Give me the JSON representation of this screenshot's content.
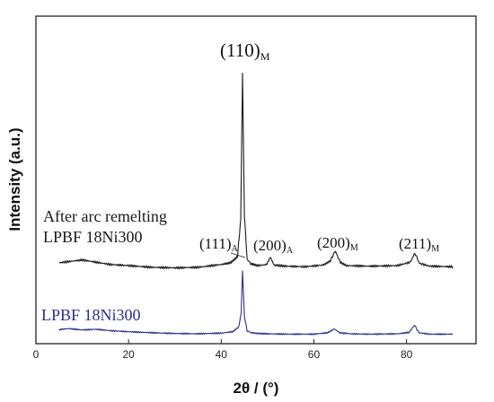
{
  "chart_data": {
    "type": "line",
    "xlabel": "2θ / (°)",
    "ylabel": "Intensity (a.u.)",
    "xlim": [
      0,
      95
    ],
    "xticks": [
      "0",
      "20",
      "40",
      "60",
      "80"
    ],
    "y_ticks_shown": false,
    "grid": false,
    "series": [
      {
        "name": "After arc remelting LPBF 18Ni300",
        "label_lines": [
          "After arc remelting",
          "LPBF 18Ni300"
        ],
        "color": "#1a1a1a",
        "x": [
          5,
          8,
          10,
          13,
          16,
          20,
          25,
          30,
          35,
          40,
          42,
          43.5,
          44.2,
          44.6,
          45.0,
          45.6,
          46.5,
          48,
          49.8,
          50.6,
          51.4,
          54,
          58,
          62,
          63.5,
          64.6,
          65.7,
          67,
          72,
          78,
          80.8,
          81.8,
          82.8,
          85,
          90
        ],
        "values": [
          0.5,
          0.8,
          1.0,
          0.6,
          0.2,
          0.0,
          -0.3,
          -0.4,
          -0.3,
          0.2,
          0.5,
          1.6,
          8.0,
          34.0,
          9.0,
          1.0,
          0.3,
          0.0,
          0.2,
          1.5,
          0.1,
          -0.1,
          -0.2,
          0.1,
          0.8,
          2.6,
          0.6,
          0.0,
          -0.1,
          0.0,
          0.6,
          2.2,
          0.4,
          -0.1,
          -0.2
        ]
      },
      {
        "name": "LPBF 18Ni300",
        "label_lines": [
          "LPBF 18Ni300"
        ],
        "color": "#2b2f8c",
        "x": [
          5,
          7,
          10,
          13,
          16,
          20,
          25,
          30,
          35,
          40,
          42.5,
          43.8,
          44.3,
          44.6,
          45.0,
          45.6,
          46.5,
          48,
          50,
          55,
          60,
          63,
          64.4,
          65.6,
          68,
          72,
          78,
          80.6,
          81.7,
          82.7,
          85,
          90
        ],
        "values": [
          1.2,
          1.5,
          1.1,
          1.3,
          0.9,
          0.6,
          0.3,
          0.1,
          0.0,
          0.2,
          0.6,
          2.0,
          6.0,
          18.0,
          5.0,
          0.8,
          0.3,
          0.1,
          0.0,
          -0.1,
          -0.1,
          0.3,
          1.4,
          0.3,
          0.0,
          -0.1,
          0.0,
          0.4,
          2.5,
          0.3,
          -0.1,
          -0.1
        ]
      }
    ],
    "annotations": [
      {
        "main": "(110)",
        "sub": "M"
      },
      {
        "main": "(111)",
        "sub": "A"
      },
      {
        "main": "(200)",
        "sub": "A"
      },
      {
        "main": "(200)",
        "sub": "M"
      },
      {
        "main": "(211)",
        "sub": "M"
      }
    ]
  }
}
